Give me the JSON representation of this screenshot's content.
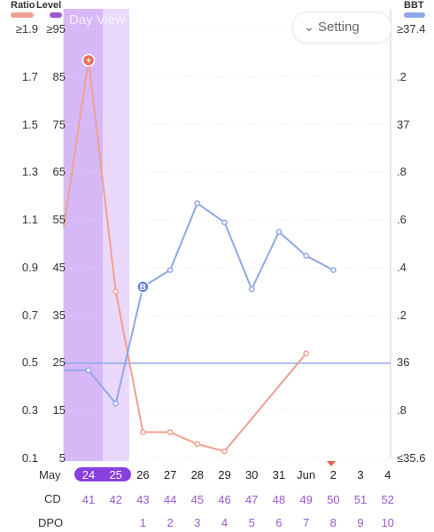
{
  "header": {
    "ratio_title": "Ratio",
    "level_title": "Level",
    "bbt_title": "BBT",
    "ratio_color": "#f0a090",
    "level_color": "#9b59d0",
    "bbt_color": "#8fa7e8"
  },
  "day_view_label": "Day View",
  "setting_button": {
    "label": "Setting",
    "icon": "chevron-down-icon"
  },
  "axes": {
    "ratio_ticks": [
      "≥1.9",
      "1.7",
      "1.5",
      "1.3",
      "1.1",
      "0.9",
      "0.7",
      "0.5",
      "0.3",
      "0.1"
    ],
    "level_ticks": [
      "≥95",
      "85",
      "75",
      "65",
      "55",
      "45",
      "35",
      "25",
      "15",
      "5"
    ],
    "bbt_ticks": [
      "≥37.4",
      ".2",
      "37",
      ".8",
      ".6",
      ".4",
      ".2",
      "36",
      ".8",
      "≤35.6"
    ]
  },
  "rows": {
    "dates": [
      "24",
      "25",
      "26",
      "27",
      "28",
      "29",
      "30",
      "31",
      "Jun",
      "2",
      "3",
      "4"
    ],
    "month_label": "May",
    "cd_label": "CD",
    "cd_values": [
      "41",
      "42",
      "43",
      "44",
      "45",
      "46",
      "47",
      "48",
      "49",
      "50",
      "51",
      "52"
    ],
    "dpo_label": "DPO",
    "dpo_values": [
      "",
      "",
      "1",
      "2",
      "3",
      "4",
      "5",
      "6",
      "7",
      "8",
      "9",
      "10"
    ],
    "selected": [
      "24",
      "25"
    ]
  },
  "chart_data": {
    "type": "line",
    "categories": [
      "May 24",
      "May 25",
      "May 26",
      "May 27",
      "May 28",
      "May 29",
      "May 30",
      "May 31",
      "Jun 1",
      "Jun 2",
      "Jun 3",
      "Jun 4"
    ],
    "series": [
      {
        "name": "Ratio",
        "axis": "left-ratio",
        "color": "#f0a090",
        "values": [
          1.77,
          0.8,
          0.21,
          0.21,
          0.16,
          0.13,
          null,
          null,
          0.54,
          null,
          null,
          null
        ],
        "left_edge_value": 1.07
      },
      {
        "name": "BBT",
        "axis": "right-bbt",
        "color": "#8fa7e8",
        "values": [
          35.97,
          35.83,
          36.32,
          36.39,
          36.67,
          36.59,
          36.31,
          36.55,
          36.45,
          36.39,
          null,
          null
        ],
        "left_edge_value": 35.97
      }
    ],
    "markers": [
      {
        "series": "Ratio",
        "category": "May 24",
        "symbol": "+"
      },
      {
        "series": "BBT",
        "category": "May 26",
        "symbol": "B"
      }
    ],
    "bbt_reference_line": 36.0,
    "ratio_ylim": [
      0.1,
      1.9
    ],
    "level_ylim": [
      5,
      95
    ],
    "bbt_ylim": [
      35.6,
      37.4
    ],
    "grid": "horizontal dotted",
    "highlight_columns": [
      "May 24",
      "May 25"
    ]
  },
  "next_period_marker_color": "#e8604c"
}
